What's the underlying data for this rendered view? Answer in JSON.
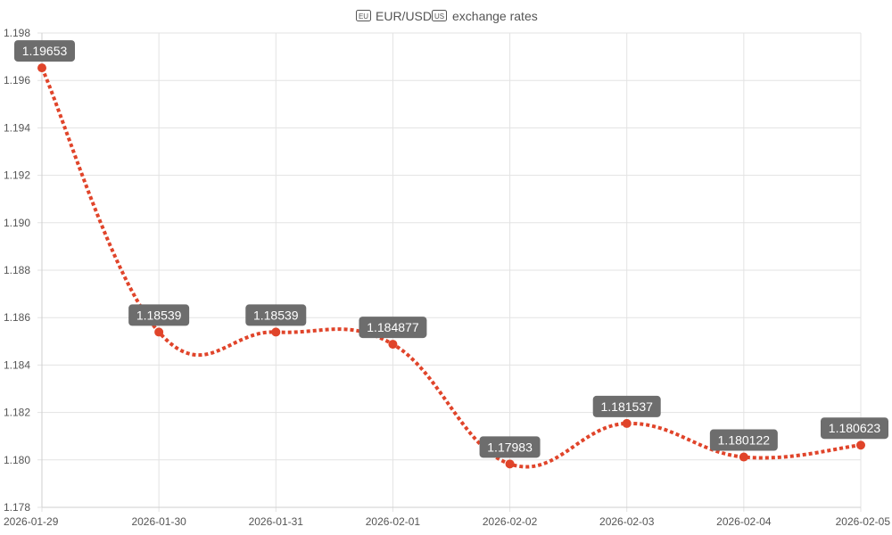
{
  "chart_data": {
    "type": "line",
    "title": "🇪🇺 EUR/USD 🇺🇸 exchange rates",
    "title_flag_left": "EU",
    "title_text": "EUR/USD",
    "title_flag_right": "US",
    "title_suffix": "exchange rates",
    "x": [
      "2026-01-29",
      "2026-01-30",
      "2026-01-31",
      "2026-02-01",
      "2026-02-02",
      "2026-02-03",
      "2026-02-04",
      "2026-02-05"
    ],
    "series": [
      {
        "values": [
          1.19653,
          1.18539,
          1.18539,
          1.184877,
          1.17983,
          1.181537,
          1.180122,
          1.180623
        ],
        "labels": [
          "1.19653",
          "1.18539",
          "1.18539",
          "1.184877",
          "1.17983",
          "1.181537",
          "1.180122",
          "1.180623"
        ],
        "color": "#e0442a",
        "line_style": "dotted",
        "smooth": true
      }
    ],
    "ylim": [
      1.178,
      1.198
    ],
    "yticks": [
      1.178,
      1.18,
      1.182,
      1.184,
      1.186,
      1.188,
      1.19,
      1.192,
      1.194,
      1.196,
      1.198
    ],
    "ytick_labels": [
      "1.178",
      "1.180",
      "1.182",
      "1.184",
      "1.186",
      "1.188",
      "1.190",
      "1.192",
      "1.194",
      "1.196",
      "1.198"
    ],
    "grid": true,
    "legend": "none",
    "data_label_bg_color": "#6d6d6d",
    "grid_color": "#e3e3e3"
  }
}
